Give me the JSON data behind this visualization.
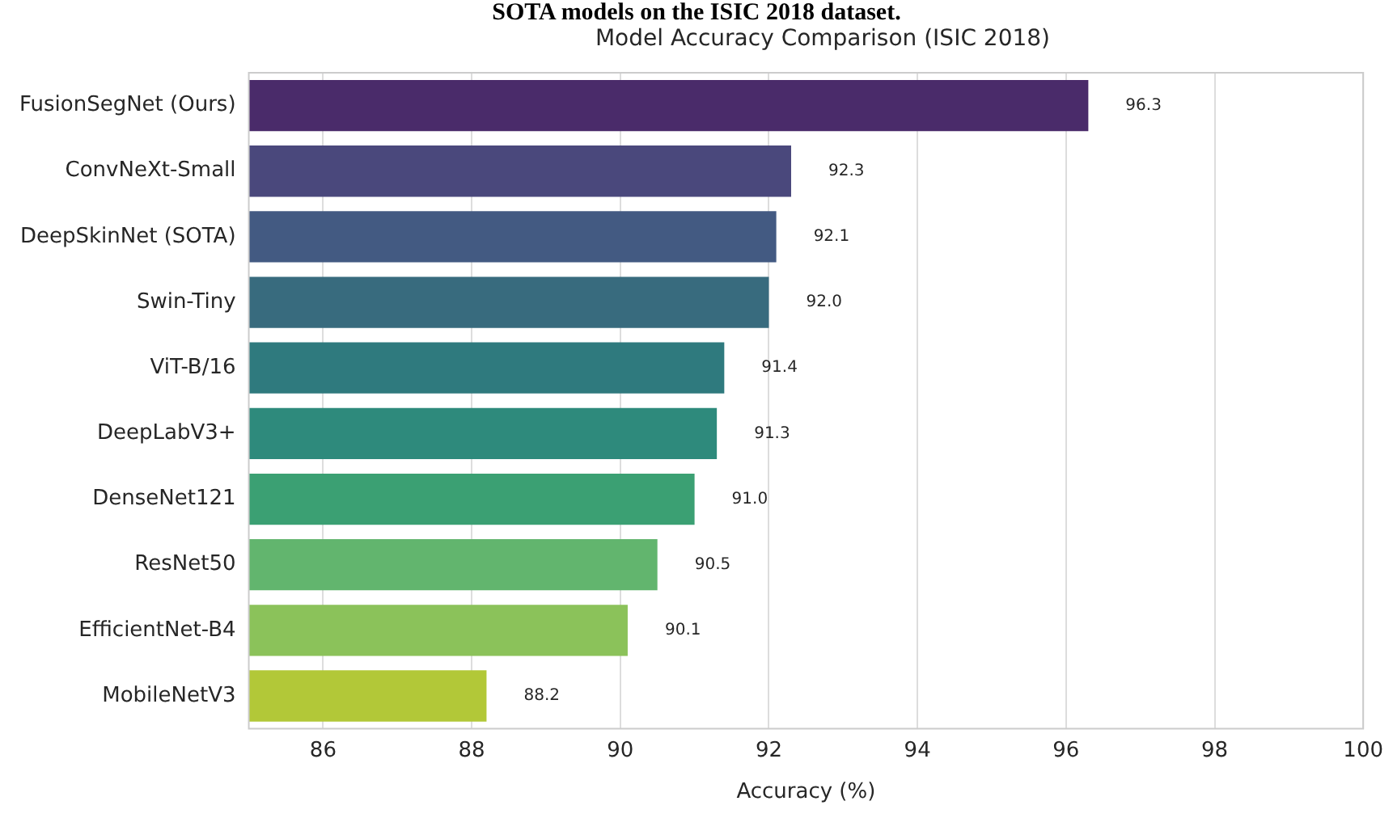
{
  "chart_data": {
    "type": "bar",
    "orientation": "horizontal",
    "title": "Model Accuracy Comparison (ISIC 2018)",
    "xlabel": "Accuracy (%)",
    "annotations": [
      "SOTA models on the ISIC 2018 dataset."
    ],
    "categories": [
      "FusionSegNet (Ours)",
      "ConvNeXt-Small",
      "DeepSkinNet (SOTA)",
      "Swin-Tiny",
      "ViT-B/16",
      "DeepLabV3+",
      "DenseNet121",
      "ResNet50",
      "EfficientNet-B4",
      "MobileNetV3"
    ],
    "values": [
      96.3,
      92.3,
      92.1,
      92.0,
      91.4,
      91.3,
      91.0,
      90.5,
      90.1,
      88.2
    ],
    "colors": [
      "#4a2b6a",
      "#4a487c",
      "#435a82",
      "#386b7e",
      "#2f7a7e",
      "#2e8a7c",
      "#3ba073",
      "#62b56e",
      "#8bc25a",
      "#b2c838"
    ],
    "xlim": [
      85,
      100
    ],
    "xticks": [
      86,
      88,
      90,
      92,
      94,
      96,
      98,
      100
    ],
    "value_labels": [
      "96.3",
      "92.3",
      "92.1",
      "92.0",
      "91.4",
      "91.3",
      "91.0",
      "90.5",
      "90.1",
      "88.2"
    ],
    "grid": "x",
    "legend": false
  }
}
